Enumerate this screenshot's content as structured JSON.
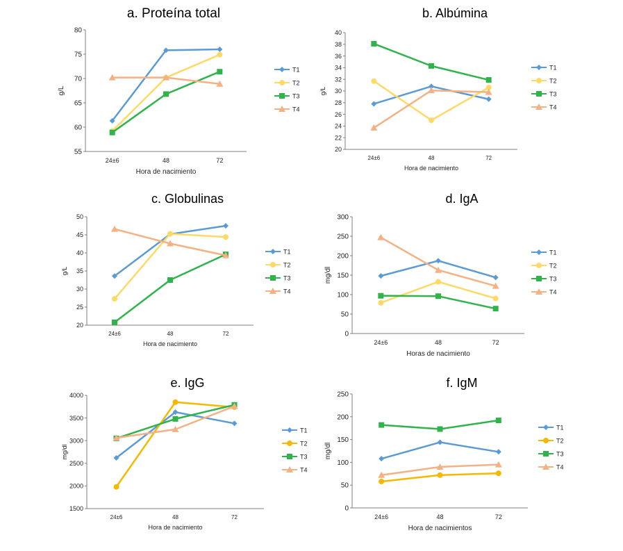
{
  "chart_data": [
    {
      "type": "line",
      "title": "a.  Proteína total",
      "xlabel": "Hora de nacimiento",
      "ylabel": "g/L",
      "categories": [
        "24±6",
        "48",
        "72"
      ],
      "ylim": [
        55,
        80
      ],
      "yticks": [
        55,
        60,
        65,
        70,
        75,
        80
      ],
      "grid": false,
      "legend": "right",
      "series": [
        {
          "name": "T1",
          "values": [
            61.3,
            75.8,
            76.0
          ],
          "color": "#5b9bd5",
          "marker": "diamond"
        },
        {
          "name": "T2",
          "values": [
            59.2,
            70.2,
            74.9
          ],
          "color": "#ffd966",
          "marker": "circle"
        },
        {
          "name": "T3",
          "values": [
            58.9,
            66.8,
            71.4
          ],
          "color": "#2fb34a",
          "marker": "square"
        },
        {
          "name": "T4",
          "values": [
            70.2,
            70.2,
            68.9
          ],
          "color": "#f4b183",
          "marker": "triangle"
        }
      ]
    },
    {
      "type": "line",
      "title": "b. Albúmina",
      "xlabel": "Hora de nacimiento",
      "ylabel": "g/L",
      "categories": [
        "24±6",
        "48",
        "72"
      ],
      "ylim": [
        20,
        40
      ],
      "yticks": [
        20,
        22,
        24,
        26,
        28,
        30,
        32,
        34,
        36,
        38,
        40
      ],
      "grid": false,
      "legend": "right",
      "series": [
        {
          "name": "T1",
          "values": [
            27.8,
            30.8,
            28.6
          ],
          "color": "#5b9bd5",
          "marker": "diamond"
        },
        {
          "name": "T2",
          "values": [
            31.7,
            25.0,
            30.6
          ],
          "color": "#ffd966",
          "marker": "circle"
        },
        {
          "name": "T3",
          "values": [
            38.1,
            34.3,
            31.9
          ],
          "color": "#2fb34a",
          "marker": "square"
        },
        {
          "name": "T4",
          "values": [
            23.7,
            30.1,
            29.8
          ],
          "color": "#f4b183",
          "marker": "triangle"
        }
      ]
    },
    {
      "type": "line",
      "title": "c. Globulinas",
      "xlabel": "Hora de nacimiento",
      "ylabel": "g/L",
      "categories": [
        "24±6",
        "48",
        "72"
      ],
      "ylim": [
        20,
        50
      ],
      "yticks": [
        20,
        25,
        30,
        35,
        40,
        45,
        50
      ],
      "grid": false,
      "legend": "right",
      "series": [
        {
          "name": "T1",
          "values": [
            33.6,
            45.2,
            47.5
          ],
          "color": "#5b9bd5",
          "marker": "diamond"
        },
        {
          "name": "T2",
          "values": [
            27.3,
            45.3,
            44.4
          ],
          "color": "#ffd966",
          "marker": "circle"
        },
        {
          "name": "T3",
          "values": [
            20.8,
            32.5,
            39.6
          ],
          "color": "#2fb34a",
          "marker": "square"
        },
        {
          "name": "T4",
          "values": [
            46.6,
            42.6,
            39.3
          ],
          "color": "#f4b183",
          "marker": "triangle"
        }
      ]
    },
    {
      "type": "line",
      "title": "d. IgA",
      "xlabel": "Horas de nacimiento",
      "ylabel": "mg/dl",
      "categories": [
        "24±6",
        "48",
        "72"
      ],
      "ylim": [
        0,
        300
      ],
      "yticks": [
        0,
        50,
        100,
        150,
        200,
        250,
        300
      ],
      "grid": false,
      "legend": "right",
      "series": [
        {
          "name": "T1",
          "values": [
            148,
            187,
            144
          ],
          "color": "#5b9bd5",
          "marker": "diamond"
        },
        {
          "name": "T2",
          "values": [
            79,
            133,
            90
          ],
          "color": "#ffd966",
          "marker": "circle"
        },
        {
          "name": "T3",
          "values": [
            97,
            96,
            64
          ],
          "color": "#2fb34a",
          "marker": "square"
        },
        {
          "name": "T4",
          "values": [
            247,
            163,
            122
          ],
          "color": "#f4b183",
          "marker": "triangle"
        }
      ]
    },
    {
      "type": "line",
      "title": "e. IgG",
      "xlabel": "Hora de nacimiento",
      "ylabel": "mg/dl",
      "categories": [
        "24±6",
        "48",
        "72"
      ],
      "ylim": [
        1500,
        4000
      ],
      "yticks": [
        1500,
        2000,
        2500,
        3000,
        3500,
        4000
      ],
      "grid": false,
      "legend": "right",
      "series": [
        {
          "name": "T1",
          "values": [
            2620,
            3630,
            3380
          ],
          "color": "#5b9bd5",
          "marker": "diamond"
        },
        {
          "name": "T2",
          "values": [
            1980,
            3850,
            3740
          ],
          "color": "#f5b800",
          "marker": "circle"
        },
        {
          "name": "T3",
          "values": [
            3050,
            3480,
            3790
          ],
          "color": "#2fb34a",
          "marker": "square"
        },
        {
          "name": "T4",
          "values": [
            3060,
            3250,
            3760
          ],
          "color": "#f4b183",
          "marker": "triangle"
        }
      ]
    },
    {
      "type": "line",
      "title": "f. IgM",
      "xlabel": "Hora de nacimientos",
      "ylabel": "mg/dl",
      "categories": [
        "24±6",
        "48",
        "72"
      ],
      "ylim": [
        0,
        250
      ],
      "yticks": [
        0,
        50,
        100,
        150,
        200,
        250
      ],
      "grid": false,
      "legend": "right",
      "series": [
        {
          "name": "T1",
          "values": [
            108,
            144,
            123
          ],
          "color": "#5b9bd5",
          "marker": "diamond"
        },
        {
          "name": "T2",
          "values": [
            58,
            72,
            76
          ],
          "color": "#f5b800",
          "marker": "circle"
        },
        {
          "name": "T3",
          "values": [
            182,
            173,
            192
          ],
          "color": "#2fb34a",
          "marker": "square"
        },
        {
          "name": "T4",
          "values": [
            72,
            90,
            95
          ],
          "color": "#f4b183",
          "marker": "triangle"
        }
      ]
    }
  ]
}
